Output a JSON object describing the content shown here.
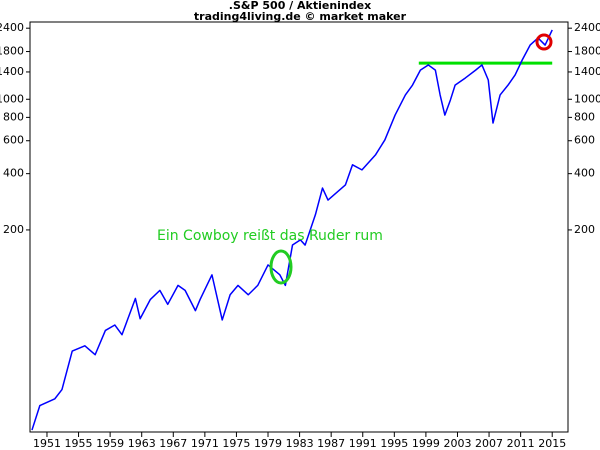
{
  "chart_data": {
    "type": "line",
    "title": ".S&P 500 / Aktienindex",
    "subtitle": "trading4living.de © market maker",
    "annotation": "Ein Cowboy reißt das Ruder rum",
    "x": [
      1949.1,
      1950.1,
      1952.0,
      1952.9,
      1954.2,
      1955.8,
      1957.1,
      1958.4,
      1959.6,
      1960.5,
      1962.2,
      1962.8,
      1964.1,
      1965.3,
      1966.3,
      1967.6,
      1968.5,
      1969.8,
      1970.4,
      1971.9,
      1973.2,
      1974.2,
      1975.2,
      1976.5,
      1977.7,
      1979.0,
      1980.5,
      1981.2,
      1982.1,
      1983.1,
      1983.7,
      1985.0,
      1985.9,
      1986.6,
      1988.8,
      1989.7,
      1990.9,
      1992.6,
      1993.8,
      1995.1,
      1996.4,
      1997.3,
      1998.3,
      1999.3,
      2000.2,
      2000.8,
      2001.4,
      2002.1,
      2002.7,
      2004.0,
      2005.3,
      2006.1,
      2006.9,
      2007.5,
      2008.4,
      2009.4,
      2010.3,
      2011.2,
      2012.2,
      2013.2,
      2014.1,
      2015.0
    ],
    "values": [
      17,
      23,
      25,
      28,
      45,
      48,
      43,
      58,
      62,
      55,
      86,
      67,
      85,
      95,
      80,
      101,
      95,
      74,
      85,
      115,
      66,
      90,
      101,
      90,
      101,
      130,
      115,
      101,
      166,
      177,
      166,
      241,
      335,
      289,
      348,
      446,
      419,
      503,
      606,
      823,
      1055,
      1190,
      1432,
      1526,
      1432,
      1055,
      823,
      990,
      1190,
      1300,
      1432,
      1526,
      1268,
      746,
      1055,
      1190,
      1350,
      1622,
      1949,
      2128,
      1949,
      2348
    ],
    "color": "#0000ff",
    "log_y": true,
    "xlim": [
      1948.85,
      2017
    ],
    "ylim": [
      16.6,
      2590
    ],
    "xticks": [
      1951,
      1955,
      1959,
      1963,
      1967,
      1971,
      1975,
      1979,
      1983,
      1987,
      1991,
      1995,
      1999,
      2003,
      2007,
      2011,
      2015
    ],
    "yticks": [
      200,
      400,
      600,
      800,
      1000,
      1400,
      1800,
      2400
    ],
    "hline": {
      "y": 1560,
      "x": [
        1998.1,
        2015
      ],
      "color": "#00e000"
    }
  }
}
